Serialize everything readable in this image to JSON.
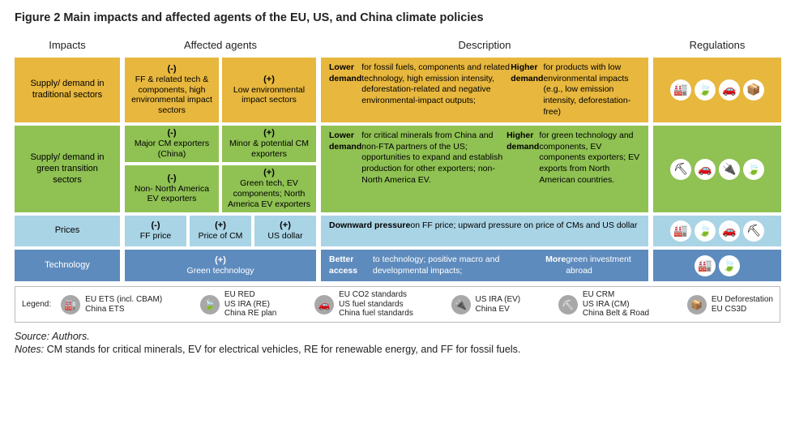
{
  "title": "Figure 2 Main impacts and affected agents of the EU, US, and China climate policies",
  "columns": [
    "Impacts",
    "Affected agents",
    "Description",
    "Regulations"
  ],
  "colors": {
    "yellow": "#e7b73e",
    "green": "#8fc153",
    "ltblue": "#a9d4e5",
    "blue": "#5e8bbd",
    "icon_grey": "#a8a8a8",
    "white": "#ffffff",
    "text_dark": "#222222",
    "text_light": "#ffffff"
  },
  "rows": [
    {
      "impact": "Supply/ demand in traditional sectors",
      "color": "yellow",
      "agents": {
        "layout": "2col",
        "boxes": [
          {
            "sign": "(-)",
            "text": "FF & related tech & components, high environmental impact sectors"
          },
          {
            "sign": "(+)",
            "text": "Low environmental impact sectors"
          }
        ]
      },
      "description_html": "<b>Lower demand</b> for fossil fuels, components and related technology, high emission intensity, deforestation-related and negative environmental-impact outputs;<br><b>Higher demand</b> for products with low environmental impacts (e.g., low emission intensity, deforestation-free)",
      "reg_icons": [
        "factory",
        "leaf",
        "car",
        "box"
      ]
    },
    {
      "impact": "Supply/ demand in green transition sectors",
      "color": "green",
      "agents": {
        "layout": "2x2",
        "boxes": [
          {
            "sign": "(-)",
            "text": "Major CM exporters (China)"
          },
          {
            "sign": "(+)",
            "text": "Minor & potential CM exporters"
          },
          {
            "sign": "(-)",
            "text": "Non- North America EV exporters"
          },
          {
            "sign": "(+)",
            "text": "Green tech, EV components; North America EV exporters"
          }
        ]
      },
      "description_html": "<b>Lower demand</b> for critical minerals from China and non-FTA partners of the US; opportunities to expand and establish production for other exporters; non- North America EV.<br><b>Higher demand</b> for green technology and components, EV components exporters; EV exports from North American countries.",
      "reg_icons": [
        "mine",
        "car",
        "ev",
        "leaf"
      ]
    },
    {
      "impact": "Prices",
      "color": "ltblue",
      "agents": {
        "layout": "3col",
        "boxes": [
          {
            "sign": "(-)",
            "text": "FF price"
          },
          {
            "sign": "(+)",
            "text": "Price of CM"
          },
          {
            "sign": "(+)",
            "text": "US dollar"
          }
        ]
      },
      "description_html": "<b>Downward pressure</b> on FF price; upward pressure on price of CMs and US dollar",
      "reg_icons": [
        "factory",
        "leaf",
        "car",
        "mine"
      ]
    },
    {
      "impact": "Technology",
      "color": "blue",
      "agents": {
        "layout": "1col",
        "boxes": [
          {
            "sign": "(+)",
            "text": "Green technology"
          }
        ]
      },
      "description_html": "<b>Better access</b> to technology; positive macro and developmental impacts;<br><b>More</b> green investment abroad",
      "reg_icons": [
        "factory",
        "leaf"
      ]
    }
  ],
  "icons": {
    "factory": "🏭",
    "leaf": "🍃",
    "car": "🚗",
    "box": "📦",
    "mine": "⛏",
    "ev": "🔌"
  },
  "legend_label": "Legend:",
  "legend": [
    {
      "icon": "factory",
      "lines": [
        "EU ETS (incl. CBAM)",
        "China ETS"
      ]
    },
    {
      "icon": "leaf",
      "lines": [
        "EU RED",
        "US IRA (RE)",
        "China RE plan"
      ]
    },
    {
      "icon": "car",
      "lines": [
        "EU CO2 standards",
        "US fuel standards",
        "China fuel standards"
      ]
    },
    {
      "icon": "ev",
      "lines": [
        "US IRA (EV)",
        "China EV"
      ]
    },
    {
      "icon": "mine",
      "lines": [
        "EU CRM",
        "US IRA (CM)",
        "China Belt & Road"
      ]
    },
    {
      "icon": "box",
      "lines": [
        "EU Deforestation",
        "EU CS3D"
      ]
    }
  ],
  "source_label": "Source:",
  "source_value": "Authors.",
  "notes_label": "Notes:",
  "notes_value": "CM stands for critical minerals, EV for electrical vehicles, RE for renewable energy, and FF for fossil fuels."
}
